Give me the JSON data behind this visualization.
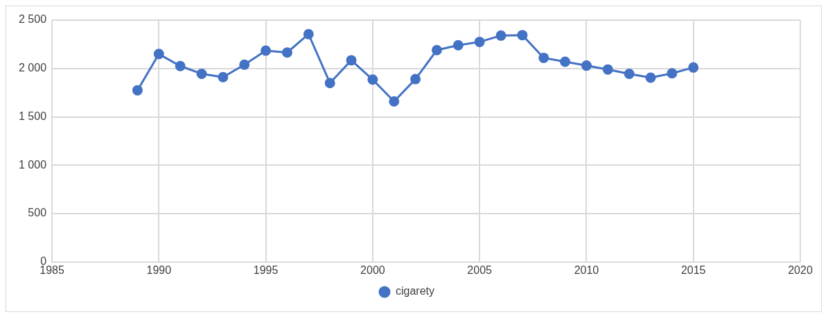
{
  "chart_data": {
    "type": "line",
    "x": [
      1989,
      1990,
      1991,
      1992,
      1993,
      1994,
      1995,
      1996,
      1997,
      1998,
      1999,
      2000,
      2001,
      2002,
      2003,
      2004,
      2005,
      2006,
      2007,
      2008,
      2009,
      2010,
      2011,
      2012,
      2013,
      2014,
      2015
    ],
    "series": [
      {
        "name": "cigarety",
        "color": "#4472c4",
        "values": [
          1775,
          2150,
          2025,
          1945,
          1910,
          2040,
          2185,
          2165,
          2355,
          1850,
          2085,
          1885,
          1660,
          1890,
          2190,
          2240,
          2275,
          2340,
          2345,
          2110,
          2070,
          2030,
          1990,
          1945,
          1905,
          1950,
          2010
        ]
      }
    ],
    "xlim": [
      1985,
      2020
    ],
    "xticks": [
      1985,
      1990,
      1995,
      2000,
      2005,
      2010,
      2015,
      2020
    ],
    "ylim": [
      0,
      2500
    ],
    "yticks": [
      0,
      500,
      {
        "value": 1000,
        "label": "1 000"
      },
      {
        "value": 1500,
        "label": "1 500"
      },
      {
        "value": 2000,
        "label": "2 000"
      },
      {
        "value": 2500,
        "label": "2 500"
      }
    ],
    "grid": true,
    "legend": "bottom",
    "marker": "circle",
    "line_style": "solid"
  }
}
